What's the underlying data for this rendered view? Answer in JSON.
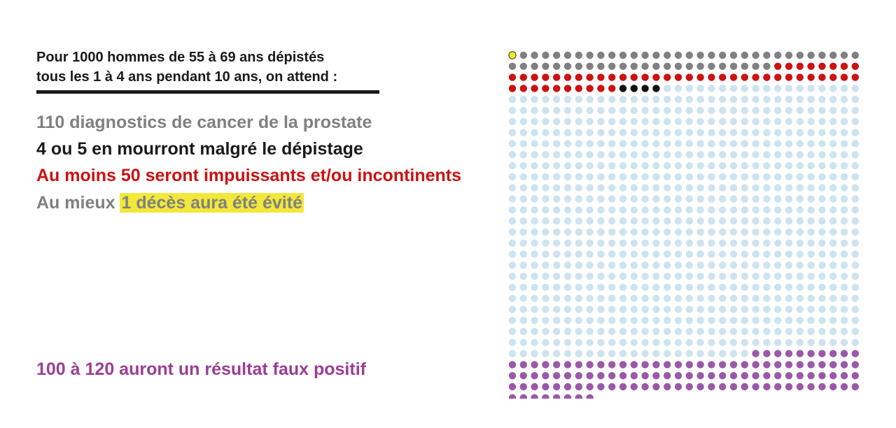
{
  "heading": {
    "line1": "Pour 1000 hommes de 55 à 69 ans dépistés",
    "line2": "tous les 1 à 4 ans pendant 10 ans, on attend :"
  },
  "stats": {
    "diagnoses": "110 diagnostics de cancer de la prostate",
    "deaths": "4 ou 5 en mourront malgré le dépistage",
    "impotent": "Au moins 50 seront impuissants et/ou incontinents",
    "avoided_prefix": "Au mieux ",
    "avoided_highlight": "1 décès aura été évité",
    "false_positive": "100 à 120 auront un résultat faux positif"
  },
  "chart_data": {
    "type": "waffle",
    "total": 1000,
    "columns": 32,
    "categories": [
      {
        "key": "avoided",
        "count": 1,
        "color": "#f5e625"
      },
      {
        "key": "diagnosed",
        "count": 55,
        "color": "#808080"
      },
      {
        "key": "impotent",
        "count": 50,
        "color": "#cc1111"
      },
      {
        "key": "died",
        "count": 4,
        "color": "#111111"
      },
      {
        "key": "unaffected",
        "count": 776,
        "color": "#cde3f0"
      },
      {
        "key": "false_positive",
        "count": 114,
        "color": "#9b58a8"
      }
    ]
  }
}
